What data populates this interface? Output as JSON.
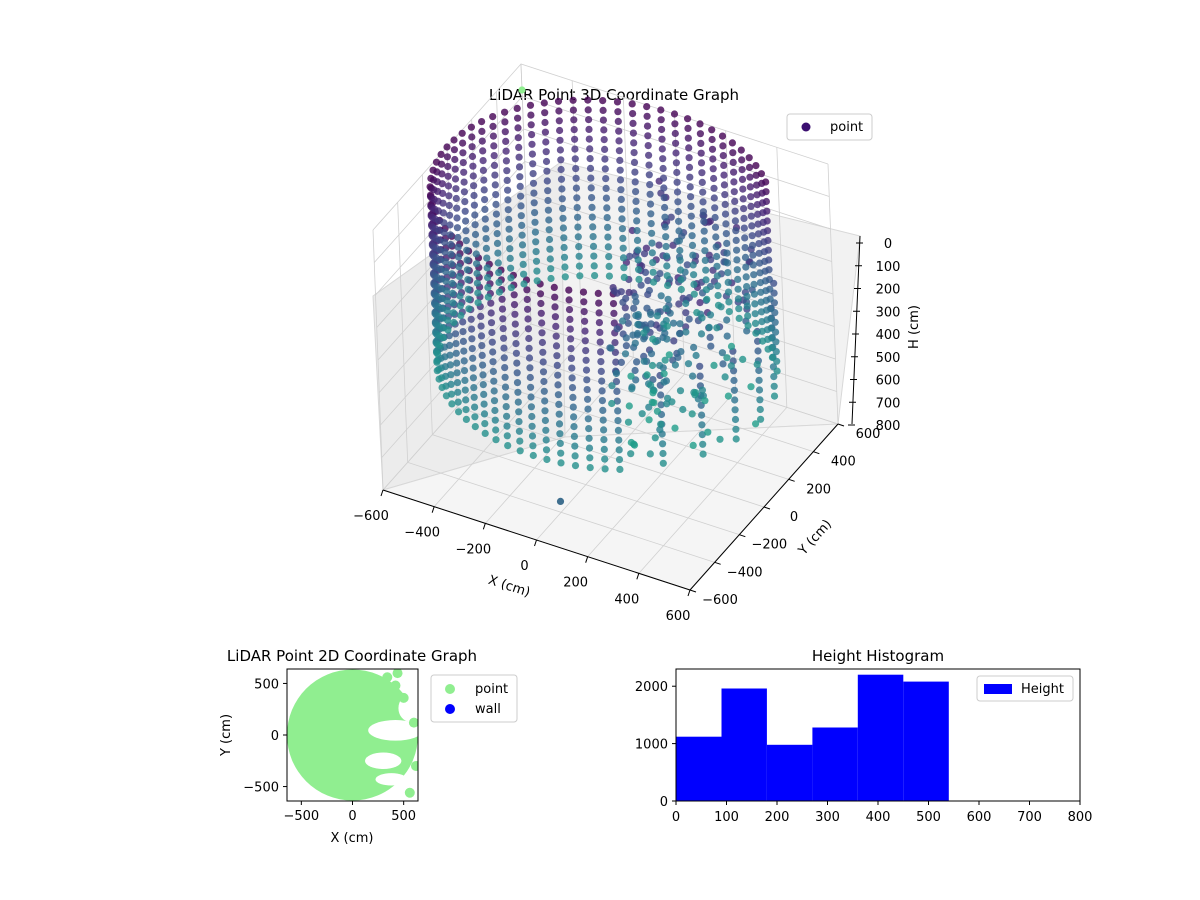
{
  "chart_data": [
    {
      "id": "lidar3d",
      "type": "scatter",
      "title": "LiDAR Point 3D Coordinate Graph",
      "xlabel": "X (cm)",
      "ylabel": "Y (cm)",
      "zlabel": "H (cm)",
      "xlim": [
        -600,
        600
      ],
      "ylim": [
        -600,
        600
      ],
      "zlim": [
        0,
        800
      ],
      "z_inverted": true,
      "x_ticks": [
        "−600",
        "−400",
        "−200",
        "0",
        "200",
        "400",
        "600"
      ],
      "x_tick_values": [
        -600,
        -400,
        -200,
        0,
        200,
        400,
        600
      ],
      "y_ticks": [
        "−600",
        "−400",
        "−200",
        "0",
        "200",
        "400",
        "600"
      ],
      "y_tick_values": [
        -600,
        -400,
        -200,
        0,
        200,
        400,
        600
      ],
      "z_ticks": [
        "0",
        "100",
        "200",
        "300",
        "400",
        "500",
        "600",
        "700",
        "800"
      ],
      "z_tick_values": [
        0,
        100,
        200,
        300,
        400,
        500,
        600,
        700,
        800
      ],
      "legend": [
        {
          "label": "point",
          "color": "#3b0f70"
        }
      ],
      "legend_position": "upper-right",
      "colormap": "viridis",
      "wall_radius": 600,
      "wall_height": [
        0,
        540
      ],
      "outliers": [
        {
          "x": -600,
          "y": 600,
          "h": 80,
          "color": "#90ee90"
        },
        {
          "x": 60,
          "y": -520,
          "h": 700,
          "color": "#3f6f8f"
        }
      ],
      "grid": true
    },
    {
      "id": "lidar2d",
      "type": "scatter",
      "title": "LiDAR Point 2D Coordinate Graph",
      "xlabel": "X (cm)",
      "ylabel": "Y (cm)",
      "xlim": [
        -640,
        640
      ],
      "ylim": [
        -640,
        640
      ],
      "x_ticks": [
        "−500",
        "0",
        "500"
      ],
      "x_tick_values": [
        -500,
        0,
        500
      ],
      "y_ticks": [
        "500",
        "0",
        "−500"
      ],
      "y_tick_values": [
        500,
        0,
        -500
      ],
      "legend": [
        {
          "label": "point",
          "color": "#90ee90"
        },
        {
          "label": "wall",
          "color": "#0000ff"
        }
      ],
      "legend_position": "outside-right",
      "disk_radius": 640
    },
    {
      "id": "height_hist",
      "type": "bar",
      "title": "Height Histogram",
      "xlabel": "",
      "ylabel": "",
      "xlim": [
        0,
        800
      ],
      "ylim": [
        0,
        2300
      ],
      "x_ticks": [
        "0",
        "100",
        "200",
        "300",
        "400",
        "500",
        "600",
        "700",
        "800"
      ],
      "x_tick_values": [
        0,
        100,
        200,
        300,
        400,
        500,
        600,
        700,
        800
      ],
      "y_ticks": [
        "0",
        "1000",
        "2000"
      ],
      "y_tick_values": [
        0,
        1000,
        2000
      ],
      "bin_edges": [
        0,
        90,
        180,
        270,
        360,
        450,
        540
      ],
      "values": [
        1120,
        1960,
        980,
        1280,
        2200,
        2080
      ],
      "color": "#0000ff",
      "legend": [
        {
          "label": "Height",
          "color": "#0000ff"
        }
      ],
      "legend_position": "upper-right"
    }
  ]
}
